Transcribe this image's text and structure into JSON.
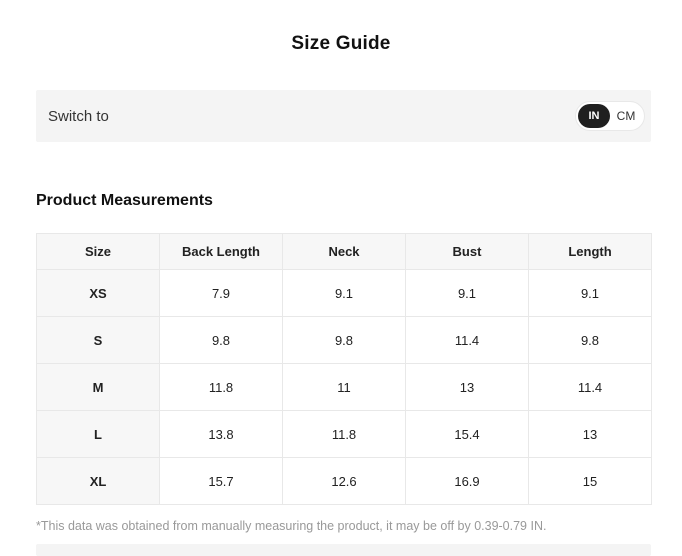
{
  "title": "Size Guide",
  "unit_switch": {
    "label": "Switch to",
    "options": [
      {
        "label": "IN",
        "active": true
      },
      {
        "label": "CM",
        "active": false
      }
    ]
  },
  "section": {
    "title": "Product Measurements"
  },
  "table": {
    "headers": [
      "Size",
      "Back Length",
      "Neck",
      "Bust",
      "Length"
    ],
    "rows": [
      {
        "size": "XS",
        "values": [
          "7.9",
          "9.1",
          "9.1",
          "9.1"
        ]
      },
      {
        "size": "S",
        "values": [
          "9.8",
          "9.8",
          "11.4",
          "9.8"
        ]
      },
      {
        "size": "M",
        "values": [
          "11.8",
          "11",
          "13",
          "11.4"
        ]
      },
      {
        "size": "L",
        "values": [
          "13.8",
          "11.8",
          "15.4",
          "13"
        ]
      },
      {
        "size": "XL",
        "values": [
          "15.7",
          "12.6",
          "16.9",
          "15"
        ]
      }
    ]
  },
  "footnote": "*This data was obtained from manually measuring the product, it may be off by 0.39-0.79 IN.",
  "colors": {
    "active_toggle_bg": "#1f1f1f",
    "active_toggle_text": "#ffffff",
    "bar_bg": "#f4f4f4",
    "table_header_bg": "#f7f7f7",
    "table_border": "#e8e8e8",
    "footnote_text": "#999999"
  }
}
